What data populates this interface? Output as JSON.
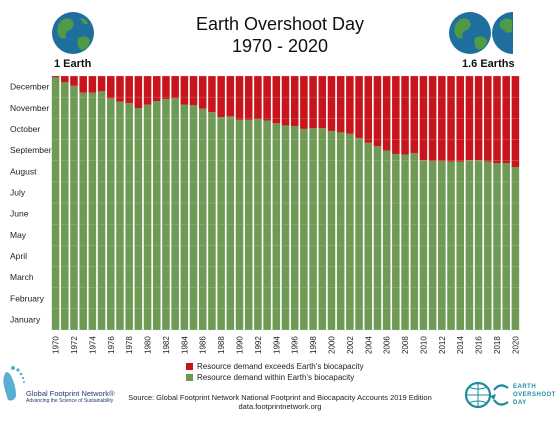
{
  "header": {
    "title": "Earth Overshoot Day",
    "subtitle": "1970 - 2020",
    "left_label": "1 Earth",
    "right_label": "1.6 Earths"
  },
  "colors": {
    "deficit": "#c8141c",
    "within": "#6f9a53",
    "brand_teal": "#1c8d9c",
    "globe_ocean": "#1e6f9e",
    "globe_land": "#4d9a47"
  },
  "icons": {
    "left_globe": "earth-globe-icon",
    "right_globes": "two-earth-globes-icon",
    "gfn_logo": "footprint-icon",
    "eod_logo": "earth-arrow-icon"
  },
  "chart_data": {
    "type": "bar",
    "stacked": true,
    "categories": [
      "1970",
      "1971",
      "1972",
      "1973",
      "1974",
      "1975",
      "1976",
      "1977",
      "1978",
      "1979",
      "1980",
      "1981",
      "1982",
      "1983",
      "1984",
      "1985",
      "1986",
      "1987",
      "1988",
      "1989",
      "1990",
      "1991",
      "1992",
      "1993",
      "1994",
      "1995",
      "1996",
      "1997",
      "1998",
      "1999",
      "2000",
      "2001",
      "2002",
      "2003",
      "2004",
      "2005",
      "2006",
      "2007",
      "2008",
      "2009",
      "2010",
      "2011",
      "2012",
      "2013",
      "2014",
      "2015",
      "2016",
      "2017",
      "2018",
      "2019",
      "2020"
    ],
    "tick_labels": [
      "1970",
      "1972",
      "1974",
      "1976",
      "1978",
      "1980",
      "1982",
      "1984",
      "1986",
      "1988",
      "1990",
      "1992",
      "1994",
      "1996",
      "1998",
      "2000",
      "2002",
      "2004",
      "2006",
      "2008",
      "2010",
      "2012",
      "2014",
      "2016",
      "2018",
      "2020"
    ],
    "y_labels": [
      "January",
      "February",
      "March",
      "April",
      "May",
      "June",
      "July",
      "August",
      "September",
      "October",
      "November",
      "December"
    ],
    "ylim": [
      0,
      365
    ],
    "series": [
      {
        "name": "Resource demand within Earth’s biocapacity",
        "values": [
          363,
          356,
          351,
          341,
          341,
          343,
          333,
          328,
          326,
          319,
          324,
          329,
          332,
          333,
          324,
          323,
          318,
          313,
          306,
          307,
          302,
          302,
          303,
          301,
          297,
          294,
          293,
          289,
          290,
          290,
          286,
          284,
          282,
          276,
          269,
          264,
          258,
          253,
          252,
          254,
          244,
          243,
          243,
          242,
          242,
          244,
          244,
          242,
          240,
          240,
          234
        ]
      },
      {
        "name": "Resource demand exceeds Earth’s biocapacity",
        "values": [
          2,
          9,
          14,
          24,
          24,
          22,
          32,
          37,
          39,
          46,
          41,
          36,
          33,
          32,
          41,
          42,
          47,
          52,
          59,
          58,
          63,
          63,
          62,
          64,
          68,
          71,
          72,
          76,
          75,
          75,
          79,
          81,
          83,
          89,
          96,
          101,
          107,
          112,
          113,
          111,
          121,
          122,
          122,
          123,
          123,
          121,
          121,
          123,
          125,
          125,
          131
        ]
      }
    ]
  },
  "legend": {
    "exceeds": "Resource demand exceeds Earth’s biocapacity",
    "within": "Resource demand within Earth’s biocapacity"
  },
  "footer": {
    "source_line1": "Source: Global Footprint Network National Footprint and Biocapacity Accounts 2019 Edition",
    "source_line2": "data.footprintnetwork.org",
    "gfn_name": "Global Footprint Network®",
    "gfn_tagline": "Advancing the Science of Sustainability",
    "eod_line1": "EARTH",
    "eod_line2": "OVERSHOOT",
    "eod_line3": "DAY"
  }
}
